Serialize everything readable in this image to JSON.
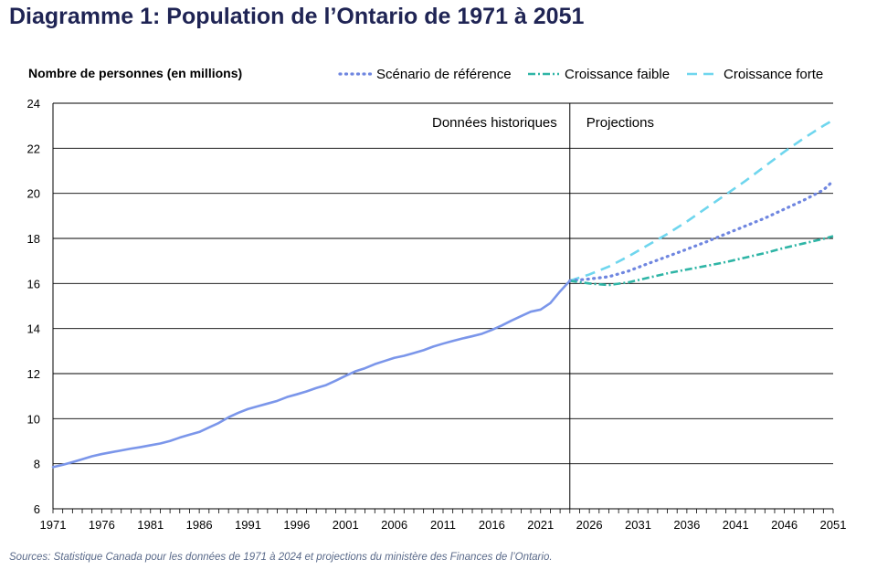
{
  "chart_data": {
    "type": "line",
    "title": "Diagramme 1: Population de l’Ontario de 1971 à 2051",
    "ylabel": "Nombre de personnes (en millions)",
    "xlabel": "",
    "xlim": [
      1971,
      2051
    ],
    "ylim": [
      6,
      24
    ],
    "yticks": [
      6,
      8,
      10,
      12,
      14,
      16,
      18,
      20,
      22,
      24
    ],
    "ytick_labels": [
      "6",
      "8",
      "10",
      "12",
      "14",
      "16",
      "18",
      "20",
      "22",
      "24"
    ],
    "xtick_labels": [
      "1971",
      "1976",
      "1981",
      "1986",
      "1991",
      "1996",
      "2001",
      "2006",
      "2011",
      "2016",
      "2021",
      "2026",
      "2031",
      "2036",
      "2041",
      "2046",
      "2051"
    ],
    "divider_year": 2024,
    "grid": true,
    "annotations": {
      "historical": "Données historiques",
      "projections": "Projections"
    },
    "legend_position": "top-right",
    "series": [
      {
        "name": "Historique",
        "in_legend": false,
        "color": "#7b96ea",
        "style": "solid",
        "x": [
          1971,
          1972,
          1973,
          1974,
          1975,
          1976,
          1977,
          1978,
          1979,
          1980,
          1981,
          1982,
          1983,
          1984,
          1985,
          1986,
          1987,
          1988,
          1989,
          1990,
          1991,
          1992,
          1993,
          1994,
          1995,
          1996,
          1997,
          1998,
          1999,
          2000,
          2001,
          2002,
          2003,
          2004,
          2005,
          2006,
          2007,
          2008,
          2009,
          2010,
          2011,
          2012,
          2013,
          2014,
          2015,
          2016,
          2017,
          2018,
          2019,
          2020,
          2021,
          2022,
          2023,
          2024
        ],
        "values": [
          7.85,
          7.95,
          8.07,
          8.2,
          8.33,
          8.43,
          8.51,
          8.59,
          8.67,
          8.74,
          8.82,
          8.9,
          9.01,
          9.16,
          9.29,
          9.41,
          9.61,
          9.81,
          10.06,
          10.26,
          10.43,
          10.55,
          10.67,
          10.79,
          10.96,
          11.08,
          11.21,
          11.36,
          11.49,
          11.69,
          11.9,
          12.1,
          12.24,
          12.42,
          12.56,
          12.7,
          12.79,
          12.91,
          13.04,
          13.2,
          13.33,
          13.45,
          13.56,
          13.66,
          13.77,
          13.94,
          14.13,
          14.35,
          14.55,
          14.75,
          14.84,
          15.13,
          15.65,
          16.12
        ]
      },
      {
        "name": "Scénario de référence",
        "in_legend": true,
        "color": "#6f86e0",
        "style": "dotted",
        "x": [
          2024,
          2026,
          2028,
          2030,
          2032,
          2034,
          2036,
          2038,
          2040,
          2042,
          2044,
          2046,
          2048,
          2050,
          2051
        ],
        "values": [
          16.12,
          16.2,
          16.3,
          16.55,
          16.88,
          17.2,
          17.52,
          17.85,
          18.2,
          18.55,
          18.9,
          19.3,
          19.7,
          20.15,
          20.55
        ]
      },
      {
        "name": "Croissance faible",
        "in_legend": true,
        "color": "#2fb5a6",
        "style": "dashdot",
        "x": [
          2024,
          2026,
          2028,
          2030,
          2032,
          2034,
          2036,
          2038,
          2040,
          2042,
          2044,
          2046,
          2048,
          2050,
          2051
        ],
        "values": [
          16.12,
          16.0,
          15.93,
          16.05,
          16.25,
          16.45,
          16.62,
          16.78,
          16.95,
          17.15,
          17.35,
          17.58,
          17.78,
          17.98,
          18.1
        ]
      },
      {
        "name": "Croissance forte",
        "in_legend": true,
        "color": "#6fd6ee",
        "style": "dashed",
        "x": [
          2024,
          2026,
          2028,
          2030,
          2032,
          2034,
          2036,
          2038,
          2040,
          2042,
          2044,
          2046,
          2048,
          2050,
          2051
        ],
        "values": [
          16.12,
          16.4,
          16.75,
          17.2,
          17.7,
          18.2,
          18.75,
          19.35,
          19.95,
          20.55,
          21.2,
          21.85,
          22.45,
          23.0,
          23.25
        ]
      }
    ]
  },
  "source": "Sources: Statistique Canada pour les données de 1971 à 2024 et projections du ministère des Finances de l’Ontario."
}
